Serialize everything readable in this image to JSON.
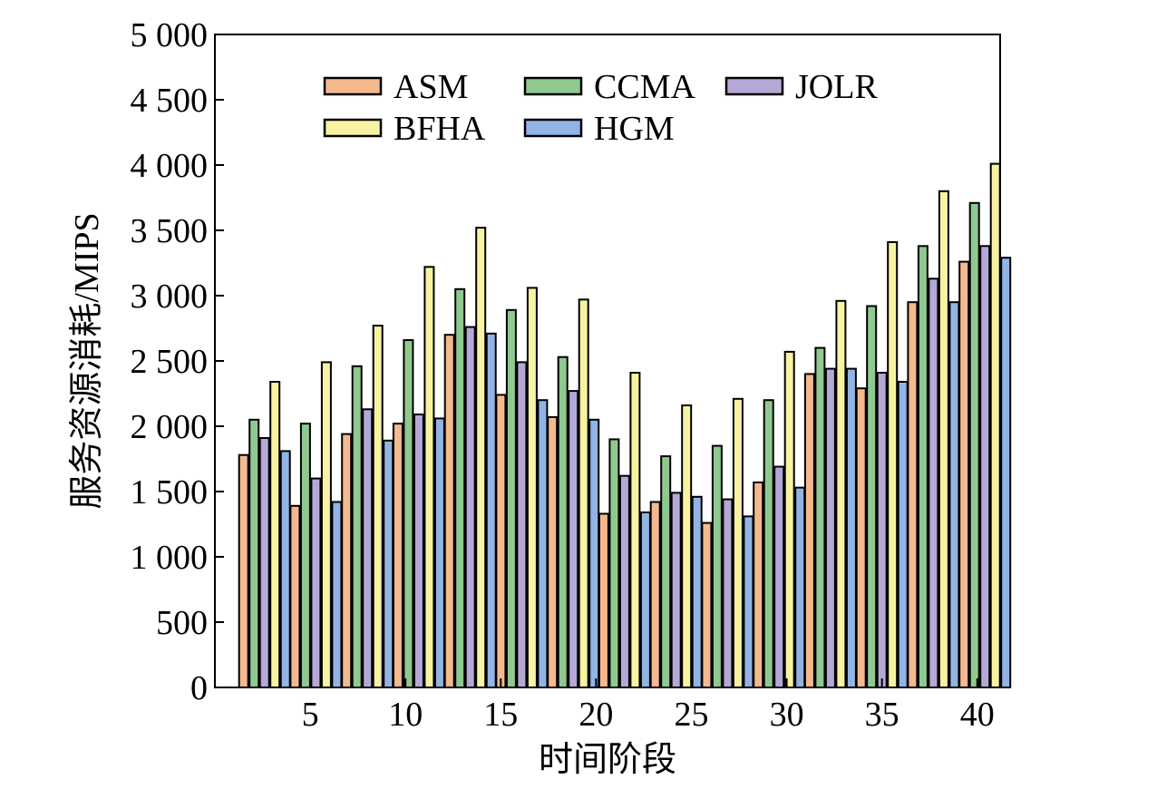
{
  "chart_data": {
    "type": "bar",
    "xlabel": "时间阶段",
    "ylabel": "服务资源消耗/MIPS",
    "ylim": [
      0,
      5000
    ],
    "yticks": [
      0,
      500,
      1000,
      1500,
      2000,
      2500,
      3000,
      3500,
      4000,
      4500,
      5000
    ],
    "ytick_labels": [
      "0",
      "500",
      "1 000",
      "1 500",
      "2 000",
      "2 500",
      "3 000",
      "3 500",
      "4 000",
      "4 500",
      "5 000"
    ],
    "xticks": [
      5,
      10,
      15,
      20,
      25,
      30,
      35,
      40
    ],
    "xtick_labels": [
      "5",
      "10",
      "15",
      "20",
      "25",
      "30",
      "35",
      "40"
    ],
    "x": [
      2.6,
      5.3,
      8.0,
      10.7,
      13.4,
      16.1,
      18.8,
      21.5,
      24.2,
      26.9,
      29.6,
      32.3,
      35.0,
      37.7,
      40.4
    ],
    "grid": false,
    "legend_position": "top",
    "series": [
      {
        "name": "ASM",
        "color": "#f5b98e",
        "values": [
          1780,
          1390,
          1940,
          2020,
          2700,
          2240,
          2070,
          1330,
          1420,
          1260,
          1570,
          2400,
          2290,
          2950,
          3260
        ]
      },
      {
        "name": "CCMA",
        "color": "#8fc98f",
        "values": [
          2050,
          2020,
          2460,
          2660,
          3050,
          2890,
          2530,
          1900,
          1770,
          1850,
          2200,
          2600,
          2920,
          3380,
          3710
        ]
      },
      {
        "name": "JOLR",
        "color": "#b5a8d6",
        "values": [
          1910,
          1600,
          2130,
          2090,
          2760,
          2490,
          2270,
          1620,
          1490,
          1440,
          1690,
          2440,
          2410,
          3130,
          3380
        ]
      },
      {
        "name": "BFHA",
        "color": "#f7f3a0",
        "values": [
          2340,
          2490,
          2770,
          3220,
          3520,
          3060,
          2970,
          2410,
          2160,
          2210,
          2570,
          2960,
          3410,
          3800,
          4010
        ]
      },
      {
        "name": "HGM",
        "color": "#92b4e4",
        "values": [
          1810,
          1420,
          1890,
          2060,
          2710,
          2200,
          2050,
          1340,
          1460,
          1310,
          1530,
          2440,
          2340,
          2950,
          3290
        ]
      }
    ]
  }
}
